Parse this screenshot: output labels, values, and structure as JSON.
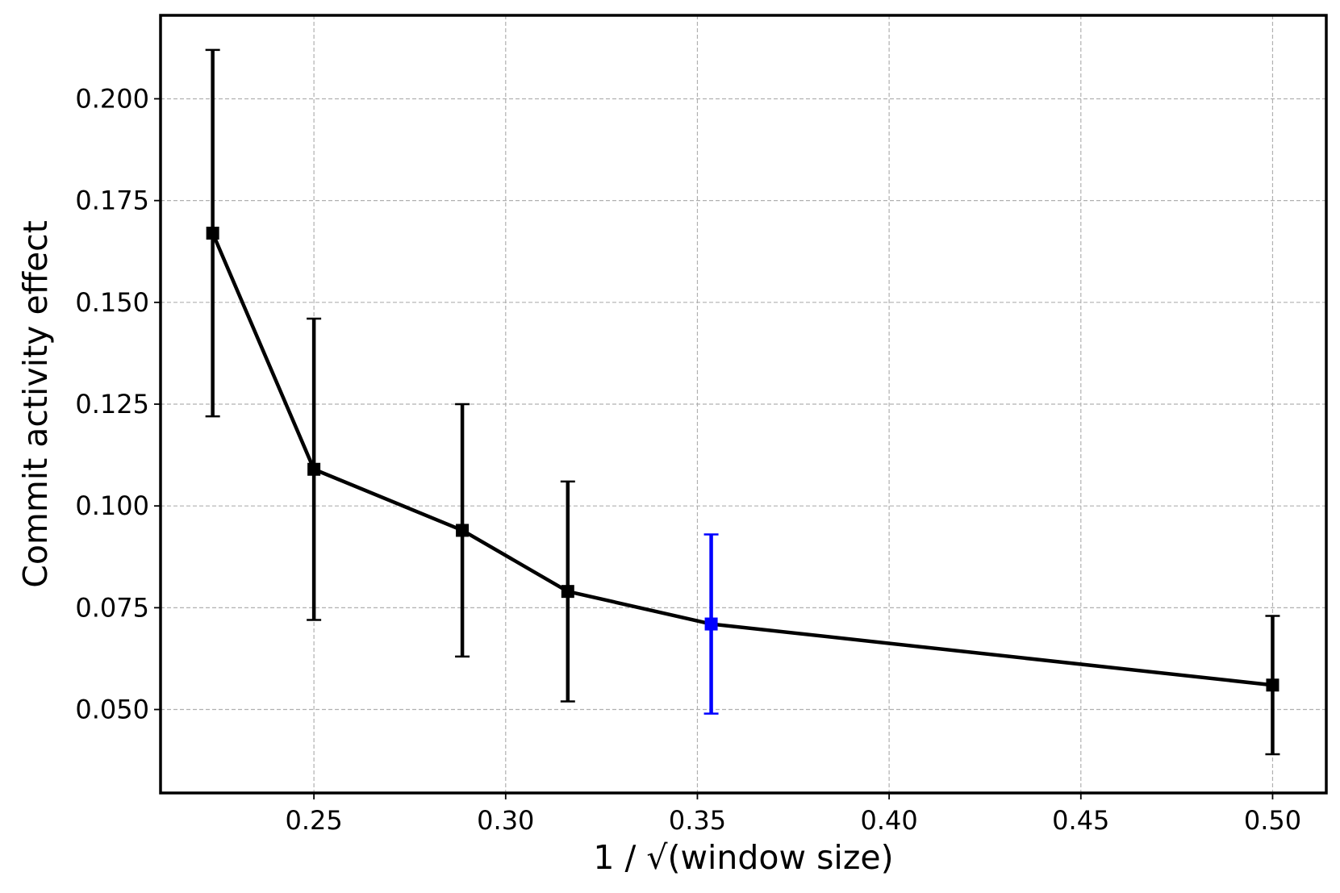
{
  "chart_data": {
    "type": "line",
    "xlabel": "1 / √(window size)",
    "ylabel": "Commit activity effect",
    "xlim": [
      0.21,
      0.514
    ],
    "ylim": [
      0.0295,
      0.2205
    ],
    "x_ticks": [
      0.25,
      0.3,
      0.35,
      0.4,
      0.45,
      0.5
    ],
    "x_tick_labels": [
      "0.25",
      "0.30",
      "0.35",
      "0.40",
      "0.45",
      "0.50"
    ],
    "y_ticks": [
      0.05,
      0.075,
      0.1,
      0.125,
      0.15,
      0.175,
      0.2
    ],
    "y_tick_labels": [
      "0.050",
      "0.075",
      "0.100",
      "0.125",
      "0.150",
      "0.175",
      "0.200"
    ],
    "grid": true,
    "legend": "none",
    "line_color": "#000000",
    "highlight_color": "#0000ff",
    "points": [
      {
        "x": 0.2236,
        "y": 0.167,
        "y_low": 0.122,
        "y_high": 0.212,
        "highlight": false
      },
      {
        "x": 0.25,
        "y": 0.109,
        "y_low": 0.072,
        "y_high": 0.146,
        "highlight": false
      },
      {
        "x": 0.2887,
        "y": 0.094,
        "y_low": 0.063,
        "y_high": 0.125,
        "highlight": false
      },
      {
        "x": 0.3162,
        "y": 0.079,
        "y_low": 0.052,
        "y_high": 0.106,
        "highlight": false
      },
      {
        "x": 0.3536,
        "y": 0.071,
        "y_low": 0.049,
        "y_high": 0.093,
        "highlight": true
      },
      {
        "x": 0.5,
        "y": 0.056,
        "y_low": 0.039,
        "y_high": 0.073,
        "highlight": false
      }
    ]
  }
}
